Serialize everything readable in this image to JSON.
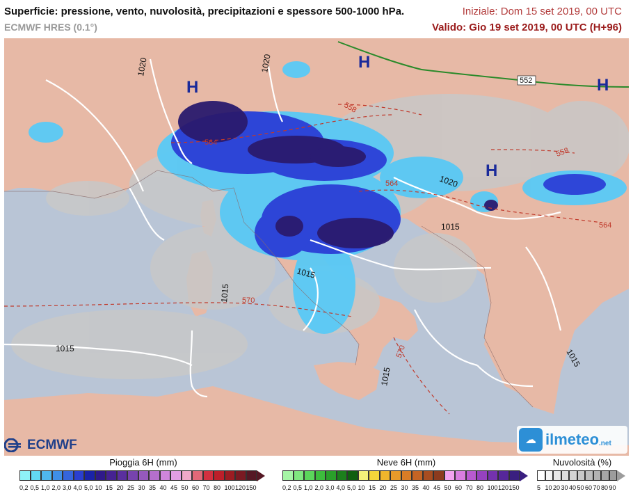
{
  "header": {
    "title": "Superficie: pressione, vento, nuvolosità, precipitazioni e spessore 500-1000 hPa.",
    "subtitle": "ECMWF HRES (0.1°)",
    "initial": "Iniziale: Dom 15 set 2019, 00 UTC",
    "valid": "Valido: Gio 19 set 2019, 00 UTC (H+96)"
  },
  "map": {
    "pressure_labels": [
      "1020",
      "1020",
      "1020",
      "1015",
      "1015",
      "1015",
      "1015",
      "1015",
      "1015"
    ],
    "thickness_labels": [
      "558",
      "564",
      "564",
      "558",
      "564",
      "570",
      "570",
      "552"
    ],
    "high_centers": [
      "H",
      "H",
      "H",
      "H"
    ],
    "colors": {
      "sea": "#b9c5d6",
      "land": "#e7b9a6",
      "cloud": "#c8c8c8",
      "isobar": "#ffffff",
      "thickness": "#c0392b",
      "rain_dark": "#2a1a6e",
      "rain_mid": "#2b3fd6",
      "rain_light": "#59c9f5"
    }
  },
  "logos": {
    "ecmwf": "ECMWF",
    "ilmeteo": "ilmeteo",
    "ilmeteo_suffix": ".net"
  },
  "legends": {
    "rain": {
      "title": "Pioggia 6H (mm)",
      "ticks": [
        "0,2",
        "0,5",
        "1,0",
        "2,0",
        "3,0",
        "4,0",
        "5,0",
        "10",
        "15",
        "20",
        "25",
        "30",
        "35",
        "40",
        "45",
        "50",
        "60",
        "70",
        "80",
        "100",
        "120",
        "150"
      ],
      "colors": [
        "#8ef2f8",
        "#62daf3",
        "#4fb7ee",
        "#3f8fe6",
        "#3565dd",
        "#2a3fd0",
        "#1a23a8",
        "#2f1a8a",
        "#452292",
        "#5a2f9e",
        "#7743ad",
        "#9659bd",
        "#b46fcc",
        "#cf86dc",
        "#e39ee4",
        "#f0a9c9",
        "#e06878",
        "#d33040",
        "#bd1f2a",
        "#9c1c22",
        "#7a1a22",
        "#551824"
      ]
    },
    "snow": {
      "title": "Neve 6H (mm)",
      "ticks": [
        "0,2",
        "0,5",
        "1,0",
        "2,0",
        "3,0",
        "4,0",
        "5,0",
        "10",
        "15",
        "20",
        "25",
        "30",
        "35",
        "40",
        "45",
        "50",
        "60",
        "70",
        "80",
        "100",
        "120",
        "150"
      ],
      "colors": [
        "#a6f5a6",
        "#7fe87f",
        "#5bd65b",
        "#3dbd3d",
        "#2a9f2a",
        "#1c7f1c",
        "#0f5f0f",
        "#f5f27a",
        "#f5d63a",
        "#f0b52c",
        "#e89a2a",
        "#d97d26",
        "#c46424",
        "#a84d20",
        "#8c3b1e",
        "#f3a3f0",
        "#d97ee0",
        "#b85ad0",
        "#9642bf",
        "#7432ad",
        "#56279a",
        "#3a1f80"
      ]
    },
    "cloud": {
      "title": "Nuvolosità (%)",
      "ticks": [
        "5",
        "10",
        "20",
        "30",
        "40",
        "50",
        "60",
        "70",
        "80",
        "90"
      ],
      "colors": [
        "#ffffff",
        "#f4f4f4",
        "#e9e9e9",
        "#dedede",
        "#d3d3d3",
        "#c8c8c8",
        "#bdbdbd",
        "#b2b2b2",
        "#a7a7a7",
        "#9c9c9c"
      ]
    }
  }
}
